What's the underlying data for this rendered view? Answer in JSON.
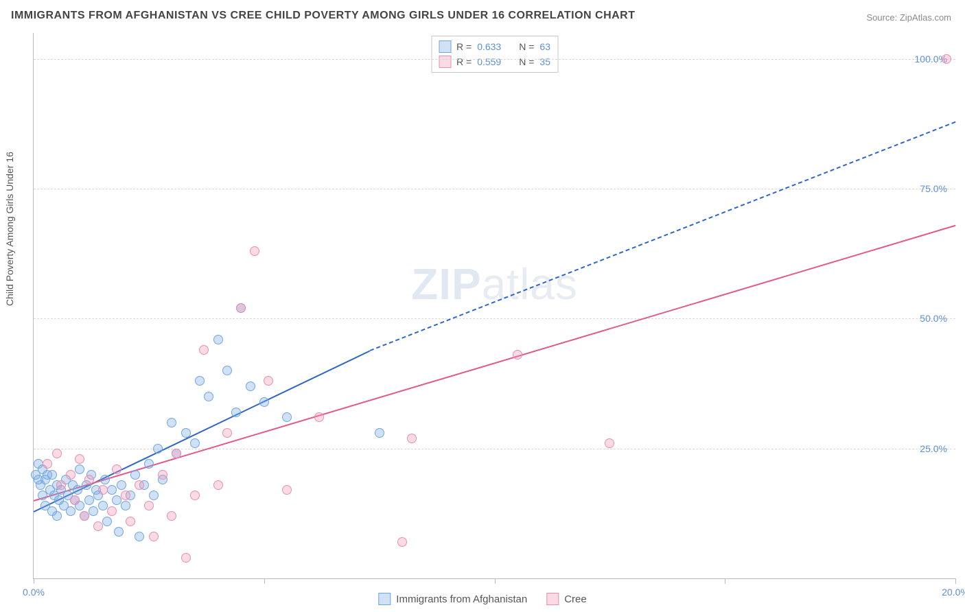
{
  "title": "IMMIGRANTS FROM AFGHANISTAN VS CREE CHILD POVERTY AMONG GIRLS UNDER 16 CORRELATION CHART",
  "source": "Source: ZipAtlas.com",
  "watermark_a": "ZIP",
  "watermark_b": "atlas",
  "chart": {
    "type": "scatter",
    "xlim": [
      0,
      20
    ],
    "ylim": [
      0,
      105
    ],
    "x_tick_positions": [
      0,
      5,
      10,
      15,
      20
    ],
    "x_tick_labels": [
      "0.0%",
      "",
      "",
      "",
      "20.0%"
    ],
    "y_tick_positions": [
      25,
      50,
      75,
      100
    ],
    "y_tick_labels": [
      "25.0%",
      "50.0%",
      "75.0%",
      "100.0%"
    ],
    "background_color": "#ffffff",
    "grid_color": "#d8d8d8",
    "axis_color": "#bbbbbb",
    "tick_label_color": "#5b8fd6",
    "ylabel": "Child Poverty Among Girls Under 16",
    "series": [
      {
        "name": "Immigrants from Afghanistan",
        "marker_fill": "rgba(120,170,230,0.35)",
        "marker_stroke": "#6fa6e0",
        "marker_radius": 7,
        "trend_color": "#2f66c4",
        "trend_width": 2.5,
        "trend_solid": {
          "x1": 0,
          "y1": 13,
          "x2": 7.3,
          "y2": 44
        },
        "trend_dashed": {
          "x1": 7.3,
          "y1": 44,
          "x2": 20,
          "y2": 88
        },
        "R": "0.633",
        "N": "63",
        "points": [
          [
            0.05,
            20
          ],
          [
            0.1,
            19
          ],
          [
            0.1,
            22
          ],
          [
            0.15,
            18
          ],
          [
            0.2,
            21
          ],
          [
            0.2,
            16
          ],
          [
            0.25,
            19
          ],
          [
            0.25,
            14
          ],
          [
            0.3,
            20
          ],
          [
            0.35,
            17
          ],
          [
            0.4,
            13
          ],
          [
            0.4,
            20
          ],
          [
            0.45,
            16
          ],
          [
            0.5,
            18
          ],
          [
            0.5,
            12
          ],
          [
            0.55,
            15
          ],
          [
            0.6,
            17
          ],
          [
            0.65,
            14
          ],
          [
            0.7,
            19
          ],
          [
            0.75,
            16
          ],
          [
            0.8,
            13
          ],
          [
            0.85,
            18
          ],
          [
            0.9,
            15
          ],
          [
            0.95,
            17
          ],
          [
            1.0,
            14
          ],
          [
            1.0,
            21
          ],
          [
            1.1,
            12
          ],
          [
            1.15,
            18
          ],
          [
            1.2,
            15
          ],
          [
            1.25,
            20
          ],
          [
            1.3,
            13
          ],
          [
            1.35,
            17
          ],
          [
            1.4,
            16
          ],
          [
            1.5,
            14
          ],
          [
            1.55,
            19
          ],
          [
            1.6,
            11
          ],
          [
            1.7,
            17
          ],
          [
            1.8,
            15
          ],
          [
            1.85,
            9
          ],
          [
            1.9,
            18
          ],
          [
            2.0,
            14
          ],
          [
            2.1,
            16
          ],
          [
            2.2,
            20
          ],
          [
            2.3,
            8
          ],
          [
            2.4,
            18
          ],
          [
            2.5,
            22
          ],
          [
            2.6,
            16
          ],
          [
            2.7,
            25
          ],
          [
            2.8,
            19
          ],
          [
            3.0,
            30
          ],
          [
            3.1,
            24
          ],
          [
            3.3,
            28
          ],
          [
            3.5,
            26
          ],
          [
            3.6,
            38
          ],
          [
            3.8,
            35
          ],
          [
            4.0,
            46
          ],
          [
            4.2,
            40
          ],
          [
            4.4,
            32
          ],
          [
            4.5,
            52
          ],
          [
            4.7,
            37
          ],
          [
            5.0,
            34
          ],
          [
            5.5,
            31
          ],
          [
            7.5,
            28
          ]
        ]
      },
      {
        "name": "Cree",
        "marker_fill": "rgba(240,150,180,0.35)",
        "marker_stroke": "#e88fb0",
        "marker_radius": 7,
        "trend_color": "#e05a8a",
        "trend_width": 2.5,
        "trend_solid": {
          "x1": 0,
          "y1": 15,
          "x2": 20,
          "y2": 68
        },
        "R": "0.559",
        "N": "35",
        "points": [
          [
            0.3,
            22
          ],
          [
            0.5,
            24
          ],
          [
            0.6,
            18
          ],
          [
            0.8,
            20
          ],
          [
            0.9,
            15
          ],
          [
            1.0,
            23
          ],
          [
            1.1,
            12
          ],
          [
            1.2,
            19
          ],
          [
            1.4,
            10
          ],
          [
            1.5,
            17
          ],
          [
            1.7,
            13
          ],
          [
            1.8,
            21
          ],
          [
            2.0,
            16
          ],
          [
            2.1,
            11
          ],
          [
            2.3,
            18
          ],
          [
            2.5,
            14
          ],
          [
            2.6,
            8
          ],
          [
            2.8,
            20
          ],
          [
            3.0,
            12
          ],
          [
            3.1,
            24
          ],
          [
            3.3,
            4
          ],
          [
            3.5,
            16
          ],
          [
            3.7,
            44
          ],
          [
            4.0,
            18
          ],
          [
            4.2,
            28
          ],
          [
            4.5,
            52
          ],
          [
            4.8,
            63
          ],
          [
            5.1,
            38
          ],
          [
            5.5,
            17
          ],
          [
            6.2,
            31
          ],
          [
            8.0,
            7
          ],
          [
            8.2,
            27
          ],
          [
            10.5,
            43
          ],
          [
            12.5,
            26
          ],
          [
            19.8,
            100
          ]
        ]
      }
    ]
  },
  "legend_top": {
    "r_label": "R =",
    "n_label": "N ="
  },
  "legend_bottom": {
    "items": [
      "Immigrants from Afghanistan",
      "Cree"
    ]
  }
}
